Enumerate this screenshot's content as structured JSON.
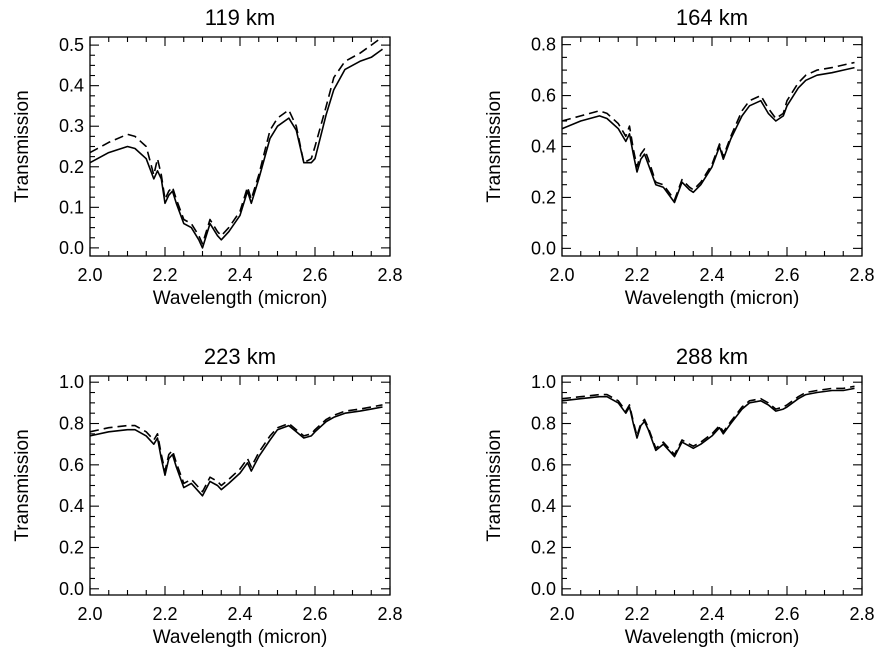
{
  "chart_data": [
    {
      "type": "line",
      "title": "119 km",
      "xlabel": "Wavelength (micron)",
      "ylabel": "Transmission",
      "xlim": [
        2.0,
        2.8
      ],
      "ylim": [
        -0.02,
        0.52
      ],
      "xticks": [
        "2.0",
        "2.2",
        "2.4",
        "2.6",
        "2.8"
      ],
      "yticks": [
        "0.0",
        "0.1",
        "0.2",
        "0.3",
        "0.4",
        "0.5"
      ],
      "series": [
        {
          "style": "solid",
          "x": [
            2.0,
            2.05,
            2.1,
            2.12,
            2.15,
            2.17,
            2.18,
            2.19,
            2.2,
            2.21,
            2.22,
            2.23,
            2.25,
            2.27,
            2.29,
            2.3,
            2.32,
            2.34,
            2.35,
            2.37,
            2.4,
            2.42,
            2.43,
            2.45,
            2.48,
            2.5,
            2.53,
            2.55,
            2.57,
            2.59,
            2.6,
            2.63,
            2.65,
            2.68,
            2.72,
            2.75,
            2.78
          ],
          "y": [
            0.21,
            0.235,
            0.25,
            0.245,
            0.22,
            0.17,
            0.19,
            0.17,
            0.11,
            0.13,
            0.14,
            0.11,
            0.06,
            0.05,
            0.02,
            0.0,
            0.06,
            0.03,
            0.02,
            0.04,
            0.08,
            0.14,
            0.11,
            0.17,
            0.27,
            0.3,
            0.32,
            0.29,
            0.21,
            0.21,
            0.22,
            0.33,
            0.39,
            0.44,
            0.46,
            0.47,
            0.49
          ]
        },
        {
          "style": "dashed",
          "x": [
            2.0,
            2.05,
            2.1,
            2.12,
            2.15,
            2.17,
            2.18,
            2.19,
            2.2,
            2.21,
            2.22,
            2.23,
            2.25,
            2.27,
            2.29,
            2.3,
            2.32,
            2.34,
            2.35,
            2.37,
            2.4,
            2.42,
            2.43,
            2.45,
            2.48,
            2.5,
            2.53,
            2.55,
            2.57,
            2.59,
            2.6,
            2.63,
            2.65,
            2.68,
            2.72,
            2.75,
            2.78
          ],
          "y": [
            0.235,
            0.26,
            0.28,
            0.275,
            0.25,
            0.18,
            0.22,
            0.18,
            0.12,
            0.14,
            0.15,
            0.12,
            0.07,
            0.06,
            0.03,
            0.01,
            0.07,
            0.04,
            0.03,
            0.05,
            0.09,
            0.15,
            0.12,
            0.18,
            0.29,
            0.32,
            0.34,
            0.3,
            0.21,
            0.22,
            0.25,
            0.35,
            0.42,
            0.46,
            0.48,
            0.5,
            0.52
          ]
        }
      ]
    },
    {
      "type": "line",
      "title": "164 km",
      "xlabel": "Wavelength (micron)",
      "ylabel": "Transmission",
      "xlim": [
        2.0,
        2.8
      ],
      "ylim": [
        -0.03,
        0.83
      ],
      "xticks": [
        "2.0",
        "2.2",
        "2.4",
        "2.6",
        "2.8"
      ],
      "yticks": [
        "0.0",
        "0.2",
        "0.4",
        "0.6",
        "0.8"
      ],
      "series": [
        {
          "style": "solid",
          "x": [
            2.0,
            2.05,
            2.1,
            2.12,
            2.15,
            2.17,
            2.18,
            2.19,
            2.2,
            2.21,
            2.22,
            2.23,
            2.25,
            2.27,
            2.29,
            2.3,
            2.32,
            2.34,
            2.35,
            2.37,
            2.4,
            2.42,
            2.43,
            2.45,
            2.48,
            2.5,
            2.53,
            2.55,
            2.57,
            2.59,
            2.6,
            2.63,
            2.65,
            2.68,
            2.72,
            2.75,
            2.78
          ],
          "y": [
            0.47,
            0.5,
            0.52,
            0.51,
            0.47,
            0.42,
            0.45,
            0.37,
            0.3,
            0.35,
            0.37,
            0.33,
            0.25,
            0.24,
            0.2,
            0.18,
            0.26,
            0.23,
            0.22,
            0.25,
            0.32,
            0.4,
            0.35,
            0.43,
            0.52,
            0.56,
            0.58,
            0.53,
            0.5,
            0.52,
            0.56,
            0.63,
            0.66,
            0.68,
            0.69,
            0.7,
            0.71
          ]
        },
        {
          "style": "dashed",
          "x": [
            2.0,
            2.05,
            2.1,
            2.12,
            2.15,
            2.17,
            2.18,
            2.19,
            2.2,
            2.21,
            2.22,
            2.23,
            2.25,
            2.27,
            2.29,
            2.3,
            2.32,
            2.34,
            2.35,
            2.37,
            2.4,
            2.42,
            2.43,
            2.45,
            2.48,
            2.5,
            2.53,
            2.55,
            2.57,
            2.59,
            2.6,
            2.63,
            2.65,
            2.68,
            2.72,
            2.75,
            2.78
          ],
          "y": [
            0.5,
            0.52,
            0.54,
            0.53,
            0.49,
            0.44,
            0.48,
            0.39,
            0.32,
            0.37,
            0.39,
            0.35,
            0.26,
            0.25,
            0.21,
            0.19,
            0.27,
            0.24,
            0.23,
            0.26,
            0.33,
            0.41,
            0.36,
            0.44,
            0.54,
            0.58,
            0.6,
            0.55,
            0.51,
            0.53,
            0.58,
            0.65,
            0.68,
            0.7,
            0.71,
            0.72,
            0.73
          ]
        }
      ]
    },
    {
      "type": "line",
      "title": "223 km",
      "xlabel": "Wavelength (micron)",
      "ylabel": "Transmission",
      "xlim": [
        2.0,
        2.8
      ],
      "ylim": [
        -0.03,
        1.03
      ],
      "xticks": [
        "2.0",
        "2.2",
        "2.4",
        "2.6",
        "2.8"
      ],
      "yticks": [
        "0.0",
        "0.2",
        "0.4",
        "0.6",
        "0.8",
        "1.0"
      ],
      "series": [
        {
          "style": "solid",
          "x": [
            2.0,
            2.05,
            2.1,
            2.12,
            2.15,
            2.17,
            2.18,
            2.19,
            2.2,
            2.21,
            2.22,
            2.23,
            2.25,
            2.27,
            2.29,
            2.3,
            2.32,
            2.34,
            2.35,
            2.37,
            2.4,
            2.42,
            2.43,
            2.45,
            2.48,
            2.5,
            2.53,
            2.55,
            2.57,
            2.59,
            2.6,
            2.63,
            2.65,
            2.68,
            2.72,
            2.75,
            2.78
          ],
          "y": [
            0.74,
            0.76,
            0.77,
            0.77,
            0.74,
            0.7,
            0.73,
            0.63,
            0.55,
            0.63,
            0.65,
            0.59,
            0.49,
            0.51,
            0.47,
            0.45,
            0.52,
            0.5,
            0.48,
            0.51,
            0.56,
            0.61,
            0.57,
            0.64,
            0.72,
            0.77,
            0.79,
            0.76,
            0.73,
            0.74,
            0.76,
            0.81,
            0.83,
            0.85,
            0.86,
            0.87,
            0.88
          ]
        },
        {
          "style": "dashed",
          "x": [
            2.0,
            2.05,
            2.1,
            2.12,
            2.15,
            2.17,
            2.18,
            2.19,
            2.2,
            2.21,
            2.22,
            2.23,
            2.25,
            2.27,
            2.29,
            2.3,
            2.32,
            2.34,
            2.35,
            2.37,
            2.4,
            2.42,
            2.43,
            2.45,
            2.48,
            2.5,
            2.53,
            2.55,
            2.57,
            2.59,
            2.6,
            2.63,
            2.65,
            2.68,
            2.72,
            2.75,
            2.78
          ],
          "y": [
            0.76,
            0.78,
            0.79,
            0.79,
            0.76,
            0.72,
            0.75,
            0.65,
            0.57,
            0.65,
            0.67,
            0.61,
            0.51,
            0.53,
            0.49,
            0.47,
            0.54,
            0.52,
            0.5,
            0.53,
            0.58,
            0.63,
            0.59,
            0.66,
            0.74,
            0.78,
            0.8,
            0.77,
            0.74,
            0.75,
            0.77,
            0.82,
            0.84,
            0.86,
            0.87,
            0.88,
            0.89
          ]
        }
      ]
    },
    {
      "type": "line",
      "title": "288 km",
      "xlabel": "Wavelength (micron)",
      "ylabel": "Transmission",
      "xlim": [
        2.0,
        2.8
      ],
      "ylim": [
        -0.03,
        1.03
      ],
      "xticks": [
        "2.0",
        "2.2",
        "2.4",
        "2.6",
        "2.8"
      ],
      "yticks": [
        "0.0",
        "0.2",
        "0.4",
        "0.6",
        "0.8",
        "1.0"
      ],
      "series": [
        {
          "style": "solid",
          "x": [
            2.0,
            2.05,
            2.1,
            2.12,
            2.15,
            2.17,
            2.18,
            2.19,
            2.2,
            2.21,
            2.22,
            2.23,
            2.25,
            2.27,
            2.29,
            2.3,
            2.32,
            2.34,
            2.35,
            2.37,
            2.4,
            2.42,
            2.43,
            2.45,
            2.48,
            2.5,
            2.53,
            2.55,
            2.57,
            2.59,
            2.6,
            2.63,
            2.65,
            2.68,
            2.72,
            2.75,
            2.78
          ],
          "y": [
            0.91,
            0.92,
            0.93,
            0.93,
            0.9,
            0.85,
            0.88,
            0.8,
            0.73,
            0.79,
            0.81,
            0.77,
            0.67,
            0.7,
            0.66,
            0.64,
            0.71,
            0.69,
            0.68,
            0.7,
            0.74,
            0.78,
            0.75,
            0.8,
            0.87,
            0.9,
            0.91,
            0.89,
            0.86,
            0.87,
            0.88,
            0.92,
            0.94,
            0.95,
            0.96,
            0.96,
            0.97
          ]
        },
        {
          "style": "dashed",
          "x": [
            2.0,
            2.05,
            2.1,
            2.12,
            2.15,
            2.17,
            2.18,
            2.19,
            2.2,
            2.21,
            2.22,
            2.23,
            2.25,
            2.27,
            2.29,
            2.3,
            2.32,
            2.34,
            2.35,
            2.37,
            2.4,
            2.42,
            2.43,
            2.45,
            2.48,
            2.5,
            2.53,
            2.55,
            2.57,
            2.59,
            2.6,
            2.63,
            2.65,
            2.68,
            2.72,
            2.75,
            2.78
          ],
          "y": [
            0.92,
            0.93,
            0.94,
            0.94,
            0.91,
            0.86,
            0.89,
            0.81,
            0.74,
            0.8,
            0.82,
            0.78,
            0.68,
            0.71,
            0.67,
            0.65,
            0.72,
            0.7,
            0.69,
            0.71,
            0.75,
            0.79,
            0.76,
            0.81,
            0.88,
            0.91,
            0.92,
            0.9,
            0.87,
            0.88,
            0.89,
            0.93,
            0.95,
            0.96,
            0.97,
            0.97,
            0.98
          ]
        }
      ]
    }
  ]
}
